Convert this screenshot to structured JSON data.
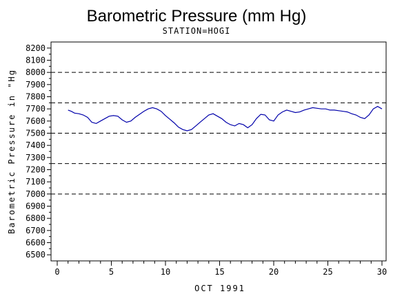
{
  "chart_data": {
    "type": "line",
    "title": "Barometric Pressure (mm Hg)",
    "subtitle": "STATION=HOGI",
    "xlabel": "OCT 1991",
    "ylabel": "Barometric Pressure in \"Hg",
    "xlim": [
      0,
      30
    ],
    "ylim": [
      6450,
      8250
    ],
    "xticks": [
      "0",
      "5",
      "10",
      "15",
      "20",
      "25",
      "30"
    ],
    "yticks": [
      "6500",
      "6600",
      "6700",
      "6800",
      "6900",
      "7000",
      "7100",
      "7200",
      "7300",
      "7400",
      "7500",
      "7600",
      "7700",
      "7800",
      "7900",
      "8000",
      "8100",
      "8200"
    ],
    "reference_lines": [
      8000,
      7750,
      7500,
      7250,
      7000
    ],
    "line_color": "#0000aa",
    "grid": false,
    "series": [
      {
        "x": [
          1.0,
          1.3,
          1.6,
          2.0,
          2.4,
          2.8,
          3.2,
          3.6,
          4.0,
          4.4,
          4.8,
          5.2,
          5.6,
          6.0,
          6.4,
          6.8,
          7.2,
          7.6,
          8.0,
          8.4,
          8.8,
          9.2,
          9.6,
          10.0,
          10.4,
          10.8,
          11.2,
          11.6,
          12.0,
          12.4,
          12.8,
          13.2,
          13.6,
          14.0,
          14.4,
          14.8,
          15.2,
          15.6,
          16.0,
          16.4,
          16.8,
          17.2,
          17.6,
          18.0,
          18.4,
          18.8,
          19.2,
          19.6,
          20.0,
          20.4,
          20.8,
          21.2,
          21.6,
          22.0,
          22.4,
          22.8,
          23.2,
          23.6,
          24.0,
          24.4,
          24.8,
          25.2,
          25.6,
          26.0,
          26.4,
          26.8,
          27.2,
          27.6,
          28.0,
          28.4,
          28.8,
          29.2,
          29.6,
          30.0
        ],
        "values": [
          7690,
          7680,
          7665,
          7660,
          7650,
          7630,
          7590,
          7580,
          7600,
          7620,
          7640,
          7645,
          7640,
          7610,
          7590,
          7600,
          7630,
          7655,
          7680,
          7700,
          7710,
          7700,
          7680,
          7645,
          7615,
          7585,
          7550,
          7530,
          7520,
          7530,
          7560,
          7590,
          7620,
          7650,
          7660,
          7640,
          7620,
          7590,
          7570,
          7560,
          7580,
          7570,
          7545,
          7570,
          7620,
          7655,
          7650,
          7610,
          7600,
          7650,
          7675,
          7690,
          7680,
          7670,
          7675,
          7690,
          7700,
          7710,
          7705,
          7700,
          7700,
          7690,
          7690,
          7685,
          7680,
          7675,
          7660,
          7650,
          7630,
          7620,
          7650,
          7700,
          7720,
          7700
        ]
      }
    ]
  }
}
